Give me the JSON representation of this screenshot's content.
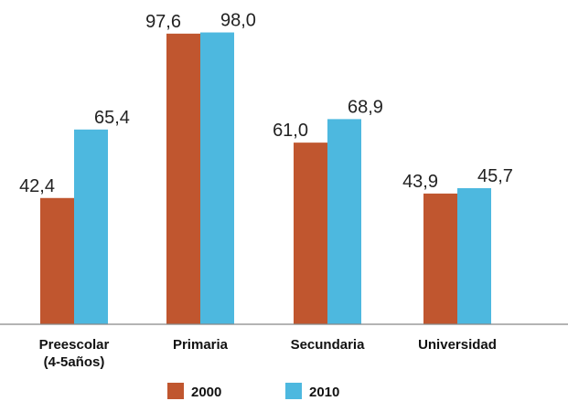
{
  "chart_data": {
    "type": "bar",
    "categories": [
      [
        "Preescolar",
        "(4-5años)"
      ],
      [
        "Primaria"
      ],
      [
        "Secundaria"
      ],
      [
        "Universidad"
      ]
    ],
    "series": [
      {
        "name": "2000",
        "color": "#C0562F",
        "values": [
          42.4,
          97.6,
          61.0,
          43.9
        ],
        "labels": [
          "42,4",
          "97,6",
          "61,0",
          "43,9"
        ]
      },
      {
        "name": "2010",
        "color": "#4DB8DF",
        "values": [
          65.4,
          98.0,
          68.9,
          45.7
        ],
        "labels": [
          "65,4",
          "98,0",
          "68,9",
          "45,7"
        ]
      }
    ],
    "title": "",
    "xlabel": "",
    "ylabel": "",
    "ylim": [
      0,
      100
    ],
    "grid": false,
    "legend": "bottom"
  }
}
